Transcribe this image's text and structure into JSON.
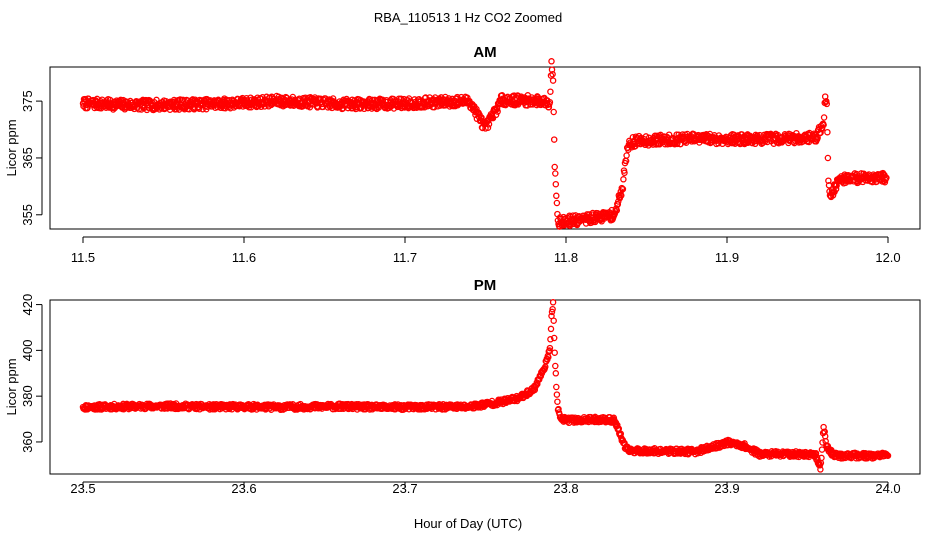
{
  "figure_title": "RBA_110513  1 Hz CO2 Zoomed",
  "xlabel": "Hour of Day (UTC)",
  "colors": {
    "points": "#ff0000",
    "axes": "#000000",
    "background": "#ffffff"
  },
  "chart_data": [
    {
      "type": "scatter",
      "title": "AM",
      "ylabel": "Licor ppm",
      "xlim": [
        11.5,
        12.0
      ],
      "ylim": [
        352.5,
        381.0
      ],
      "xticks": [
        11.5,
        11.6,
        11.7,
        11.8,
        11.9,
        12.0
      ],
      "xtick_labels": [
        "11.5",
        "11.6",
        "11.7",
        "11.8",
        "11.9",
        "12.0"
      ],
      "yticks": [
        355,
        365,
        375
      ],
      "ytick_labels": [
        "355",
        "365",
        "375"
      ],
      "series": [
        {
          "marker": "open-circle",
          "x": [
            11.5,
            11.52,
            11.54,
            11.56,
            11.58,
            11.6,
            11.62,
            11.64,
            11.66,
            11.68,
            11.7,
            11.72,
            11.74,
            11.75,
            11.76,
            11.78,
            11.79,
            11.791,
            11.792,
            11.793,
            11.795,
            11.797,
            11.8,
            11.81,
            11.82,
            11.83,
            11.835,
            11.837,
            11.838,
            11.84,
            11.845,
            11.86,
            11.88,
            11.9,
            11.92,
            11.94,
            11.955,
            11.96,
            11.961,
            11.962,
            11.963,
            11.964,
            11.97,
            11.98,
            11.99,
            11.999
          ],
          "y": [
            374.6,
            374.4,
            374.3,
            374.4,
            374.5,
            374.7,
            375.0,
            374.8,
            374.5,
            374.5,
            374.6,
            374.8,
            375.0,
            370.2,
            375.2,
            375.1,
            374.8,
            382.0,
            378.6,
            363.4,
            354.0,
            353.6,
            353.9,
            354.1,
            354.6,
            355.0,
            359.5,
            364.5,
            366.8,
            367.7,
            368.0,
            368.2,
            368.4,
            368.3,
            368.3,
            368.5,
            368.6,
            370.8,
            375.8,
            374.5,
            361.0,
            358.4,
            361.3,
            361.5,
            361.6,
            361.5
          ]
        }
      ]
    },
    {
      "type": "scatter",
      "title": "PM",
      "ylabel": "Licor ppm",
      "xlim": [
        23.48,
        24.02
      ],
      "ylim": [
        346.0,
        422.0
      ],
      "xticks": [
        23.5,
        23.6,
        23.7,
        23.8,
        23.9,
        24.0
      ],
      "xtick_labels": [
        "23.5",
        "23.6",
        "23.7",
        "23.8",
        "23.9",
        "24.0"
      ],
      "yticks": [
        360,
        380,
        400,
        420
      ],
      "ytick_labels": [
        "360",
        "380",
        "400",
        "420"
      ],
      "series": [
        {
          "marker": "open-circle",
          "x": [
            23.5,
            23.52,
            23.54,
            23.56,
            23.58,
            23.6,
            23.62,
            23.64,
            23.66,
            23.68,
            23.7,
            23.72,
            23.74,
            23.76,
            23.77,
            23.78,
            23.785,
            23.789,
            23.79,
            23.791,
            23.792,
            23.793,
            23.794,
            23.795,
            23.797,
            23.8,
            23.81,
            23.82,
            23.83,
            23.835,
            23.837,
            23.84,
            23.86,
            23.88,
            23.89,
            23.9,
            23.91,
            23.92,
            23.94,
            23.955,
            23.958,
            23.96,
            23.962,
            23.966,
            23.97,
            23.98,
            23.99,
            24.0
          ],
          "y": [
            375.2,
            375.4,
            375.6,
            375.6,
            375.3,
            375.4,
            375.2,
            375.4,
            375.5,
            375.2,
            375.2,
            375.3,
            375.4,
            377.5,
            379.0,
            383.0,
            390.0,
            397.0,
            401.0,
            415.0,
            421.0,
            399.0,
            384.0,
            374.0,
            370.0,
            369.5,
            369.6,
            369.8,
            369.6,
            361.0,
            357.0,
            356.2,
            356.0,
            355.8,
            357.5,
            359.8,
            358.5,
            354.8,
            354.7,
            354.6,
            348.0,
            366.5,
            358.0,
            354.3,
            354.0,
            354.0,
            354.0,
            354.0
          ]
        }
      ]
    }
  ]
}
